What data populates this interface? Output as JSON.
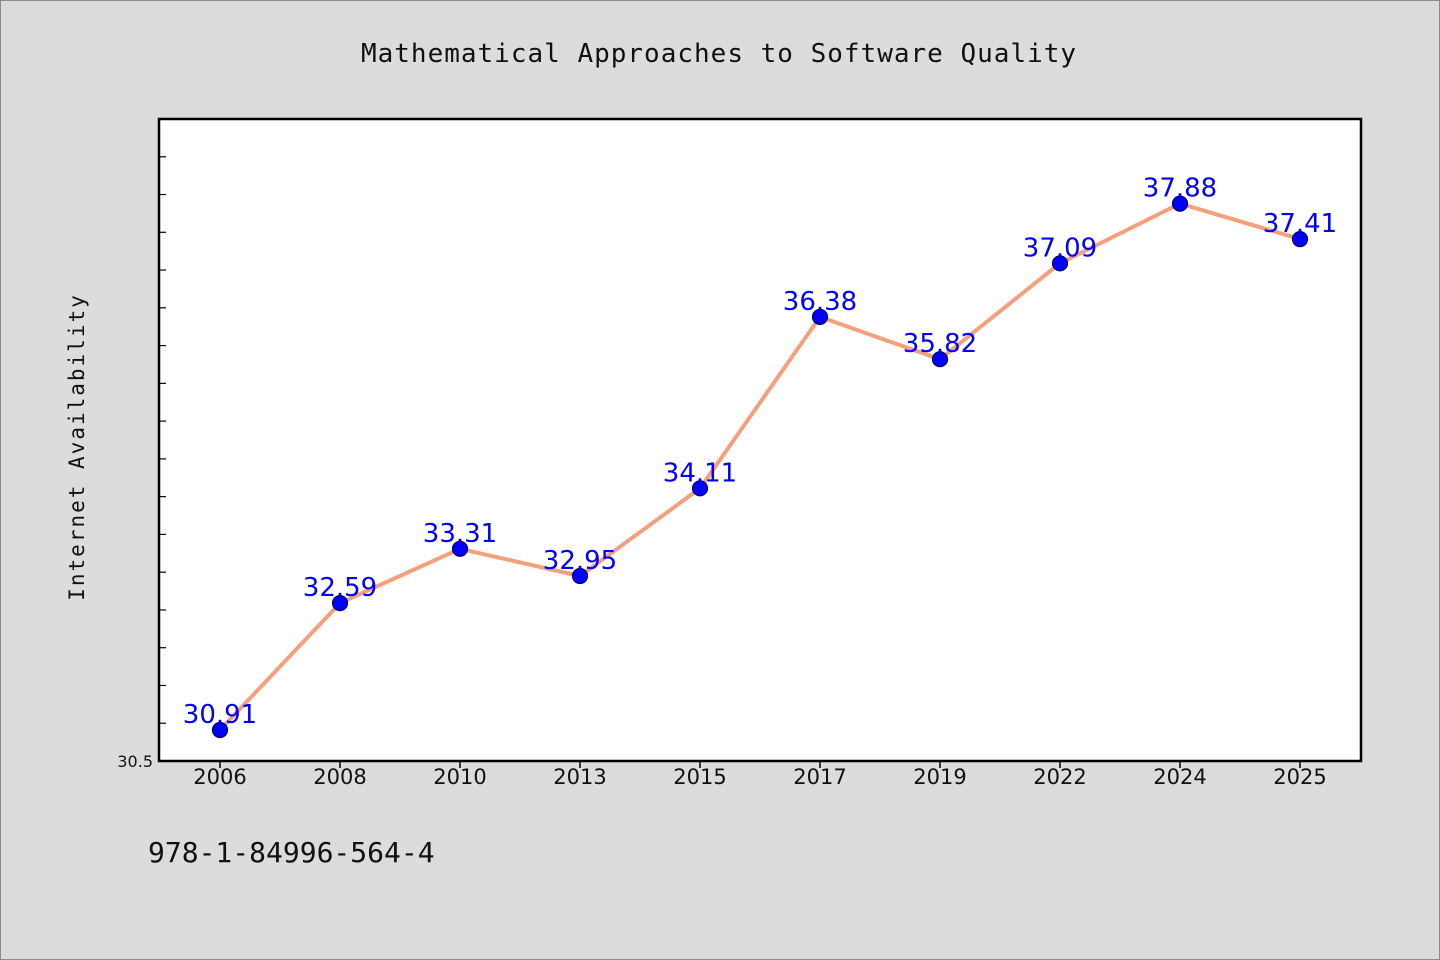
{
  "chart_data": {
    "type": "line",
    "title": "Mathematical Approaches to Software Quality",
    "ylabel": "Internet Availability",
    "xlabel": "",
    "categories": [
      "2006",
      "2008",
      "2010",
      "2013",
      "2015",
      "2017",
      "2019",
      "2022",
      "2024",
      "2025"
    ],
    "values": [
      30.91,
      32.59,
      33.31,
      32.95,
      34.11,
      36.38,
      35.82,
      37.09,
      37.88,
      37.41
    ],
    "data_labels": [
      "30.91",
      "32.59",
      "33.31",
      "32.95",
      "34.11",
      "36.38",
      "35.82",
      "37.09",
      "37.88",
      "37.41"
    ],
    "ylim": [
      30.5,
      39.0
    ],
    "ytick_labels": [
      {
        "value": 30.5,
        "label": "30.5"
      }
    ],
    "minor_tick_step": 0.5,
    "grid": false,
    "legend": "none",
    "colors": {
      "line": "#f4a07c",
      "marker_fill": "#0000ff",
      "marker_edge": "#000066",
      "data_label": "#0000ff",
      "plot_background": "#ffffff",
      "figure_background": "#dcdcdc"
    }
  },
  "footer": {
    "isbn": "978-1-84996-564-4"
  }
}
